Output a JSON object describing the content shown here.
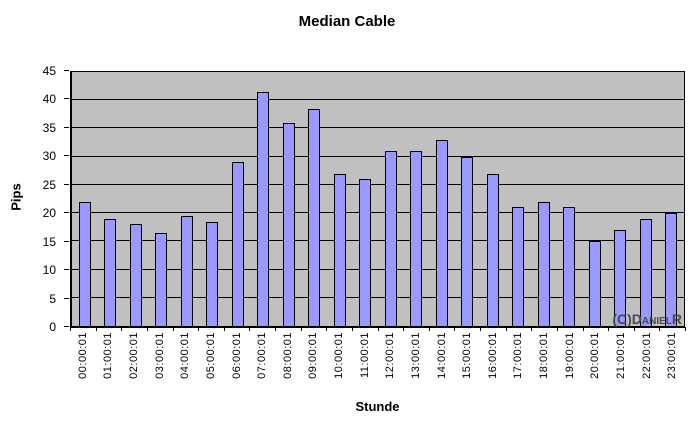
{
  "watermark": "(C)DanielR",
  "chart_data": {
    "type": "bar",
    "title": "Median Cable",
    "xlabel": "Stunde",
    "ylabel": "Pips",
    "ylim": [
      0,
      45
    ],
    "yticks": [
      0,
      5,
      10,
      15,
      20,
      25,
      30,
      35,
      40,
      45
    ],
    "grid": true,
    "legend": false,
    "plot_bg": "#C0C0C0",
    "bar_color": "#9999FF",
    "bar_border": "#000000",
    "categories": [
      "00:00:01",
      "01:00:01",
      "02:00:01",
      "03:00:01",
      "04:00:01",
      "05:00:01",
      "06:00:01",
      "07:00:01",
      "08:00:01",
      "09:00:01",
      "10:00:01",
      "11:00:01",
      "12:00:01",
      "13:00:01",
      "14:00:01",
      "15:00:01",
      "16:00:01",
      "17:00:01",
      "18:00:01",
      "19:00:01",
      "20:00:01",
      "21:00:01",
      "22:00:01",
      "23:00:01"
    ],
    "values": [
      22,
      19,
      18,
      16.5,
      19.5,
      18.5,
      29,
      41.5,
      36,
      38.5,
      27,
      26,
      31,
      31,
      33,
      30,
      27,
      21,
      22,
      21,
      15,
      17,
      19,
      20
    ]
  }
}
